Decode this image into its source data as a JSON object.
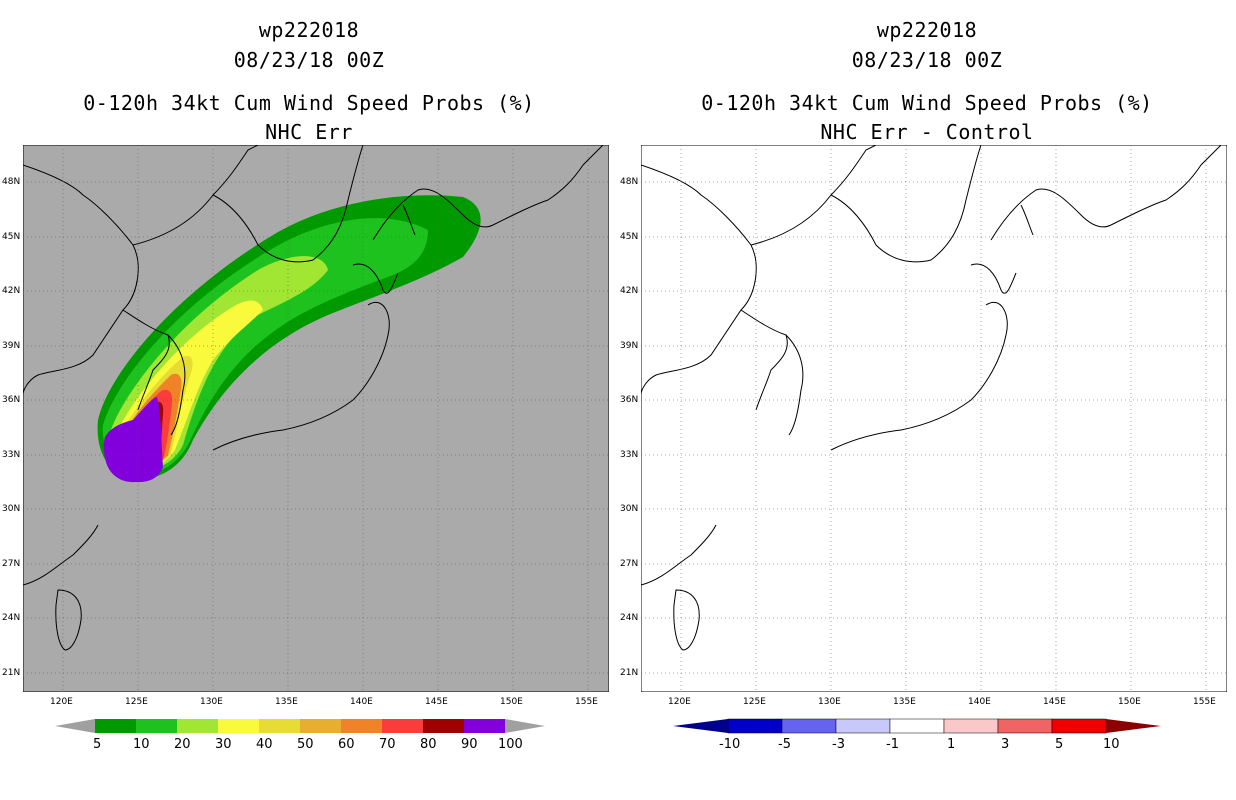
{
  "left_panel": {
    "storm_id": "wp222018",
    "datetime": "08/23/18 00Z",
    "product": "0-120h 34kt Cum Wind Speed Probs (%)",
    "subtitle": "NHC Err",
    "colorbar": {
      "labels": [
        "5",
        "10",
        "20",
        "30",
        "40",
        "50",
        "60",
        "70",
        "80",
        "90",
        "100"
      ],
      "colors": [
        "#009a00",
        "#1ec21e",
        "#a0e632",
        "#fafa3c",
        "#e6dc32",
        "#e6af2d",
        "#f08228",
        "#fa3c3c",
        "#a00000",
        "#8200dc"
      ],
      "end_color": "#a0a0a0"
    },
    "map_background": "#aaaaaa"
  },
  "right_panel": {
    "storm_id": "wp222018",
    "datetime": "08/23/18 00Z",
    "product": "0-120h 34kt Cum Wind Speed Probs (%)",
    "subtitle": "NHC Err - Control",
    "colorbar": {
      "labels": [
        "-10",
        "-5",
        "-3",
        "-1",
        "1",
        "3",
        "5",
        "10"
      ],
      "colors": [
        "#0000c8",
        "#6464f0",
        "#c8c8fa",
        "#ffffff",
        "#fac8c8",
        "#f06464",
        "#f00000"
      ],
      "low_end_color": "#00008c",
      "high_end_color": "#8c0000"
    },
    "map_background": "#ffffff"
  },
  "axes": {
    "lat_ticks": [
      "48N",
      "45N",
      "42N",
      "39N",
      "36N",
      "33N",
      "30N",
      "27N",
      "24N",
      "21N"
    ],
    "lon_ticks": [
      "120E",
      "125E",
      "130E",
      "135E",
      "140E",
      "145E",
      "150E",
      "155E"
    ]
  }
}
